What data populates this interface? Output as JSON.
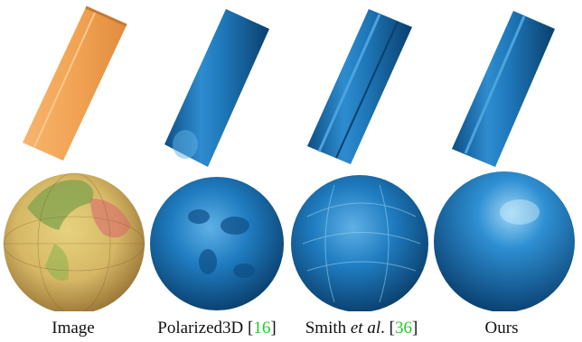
{
  "figure": {
    "columns": [
      {
        "caption": "Image"
      },
      {
        "caption": "Polarized3D",
        "cite": "16"
      },
      {
        "caption_pre": "Smith",
        "caption_em": "et al",
        "caption_post": ".",
        "cite": "36"
      },
      {
        "caption": "Ours"
      }
    ],
    "rows": [
      "cylinder",
      "globe"
    ]
  },
  "colors": {
    "image_orange": "#f4a454",
    "globe_land": "#d9c169",
    "globe_ocean": "#c39456",
    "render_blue": "#1c73b0",
    "citation_green": "#22cc22"
  }
}
